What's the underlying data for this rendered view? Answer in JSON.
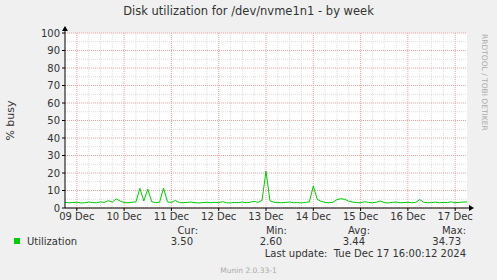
{
  "chart_data": {
    "type": "line",
    "title": "Disk utilization for /dev/nvme1n1 - by week",
    "y_label": "% busy",
    "side_text": "RRDTOOL / TOBI OETIKER",
    "footer": "Munin 2.0.33-1",
    "last_update": "Last update:  Tue Dec 17 16:00:12 2024",
    "stats": [
      {
        "label": "Cur:",
        "value": "3.50"
      },
      {
        "label": "Min:",
        "value": "2.60"
      },
      {
        "label": "Avg:",
        "value": "3.44"
      },
      {
        "label": "Max:",
        "value": "34.73"
      }
    ],
    "grid": true,
    "xlim": [
      -6,
      198
    ],
    "xticks": [
      {
        "value": 0,
        "label": "09 Dec"
      },
      {
        "value": 24,
        "label": "10 Dec"
      },
      {
        "value": 48,
        "label": "11 Dec"
      },
      {
        "value": 72,
        "label": "12 Dec"
      },
      {
        "value": 96,
        "label": "13 Dec"
      },
      {
        "value": 120,
        "label": "14 Dec"
      },
      {
        "value": 144,
        "label": "15 Dec"
      },
      {
        "value": 168,
        "label": "16 Dec"
      },
      {
        "value": 192,
        "label": "17 Dec"
      }
    ],
    "ylim": [
      0,
      100
    ],
    "yticks": [
      0,
      10,
      20,
      30,
      40,
      50,
      60,
      70,
      80,
      90,
      100
    ],
    "x": [
      -6,
      -4,
      -2,
      0,
      2,
      4,
      6,
      8,
      10,
      12,
      14,
      16,
      18,
      20,
      22,
      24,
      26,
      28,
      30,
      32,
      34,
      36,
      38,
      40,
      42,
      44,
      46,
      48,
      50,
      52,
      54,
      56,
      58,
      60,
      62,
      64,
      66,
      68,
      70,
      72,
      74,
      76,
      78,
      80,
      82,
      84,
      86,
      88,
      90,
      92,
      94,
      96,
      98,
      100,
      102,
      104,
      106,
      108,
      110,
      112,
      114,
      116,
      118,
      120,
      122,
      124,
      126,
      128,
      130,
      132,
      134,
      136,
      138,
      140,
      142,
      144,
      146,
      148,
      150,
      152,
      154,
      156,
      158,
      160,
      162,
      164,
      166,
      168,
      170,
      172,
      174,
      176,
      178,
      180,
      182,
      184,
      186,
      188,
      190,
      192,
      194,
      196,
      198
    ],
    "series": [
      {
        "name": "Utilization",
        "color": "#00cc00",
        "values": [
          3.2,
          3.0,
          3.1,
          3.3,
          2.9,
          3.0,
          3.4,
          3.1,
          3.0,
          3.5,
          3.2,
          4.2,
          3.3,
          5.2,
          4.0,
          3.1,
          3.0,
          3.3,
          3.5,
          11.2,
          4.0,
          10.8,
          3.6,
          3.1,
          3.3,
          11.4,
          3.5,
          3.2,
          4.3,
          3.1,
          3.0,
          3.2,
          3.4,
          3.0,
          2.9,
          3.1,
          3.3,
          3.0,
          3.2,
          3.1,
          3.6,
          3.0,
          2.9,
          3.2,
          3.1,
          3.4,
          3.0,
          3.3,
          3.8,
          3.2,
          4.5,
          21.0,
          4.2,
          3.3,
          3.1,
          3.0,
          3.2,
          3.4,
          3.0,
          3.1,
          2.9,
          3.2,
          3.5,
          12.5,
          5.0,
          3.8,
          3.2,
          3.0,
          3.3,
          4.8,
          5.3,
          5.0,
          3.9,
          3.4,
          3.1,
          3.0,
          3.6,
          3.2,
          3.0,
          3.3,
          4.0,
          3.1,
          2.9,
          3.2,
          3.4,
          3.0,
          3.1,
          3.3,
          3.0,
          3.2,
          4.8,
          3.3,
          3.0,
          3.1,
          3.4,
          3.0,
          3.2,
          3.1,
          3.5,
          3.0,
          3.2,
          3.4,
          3.5
        ]
      }
    ]
  }
}
